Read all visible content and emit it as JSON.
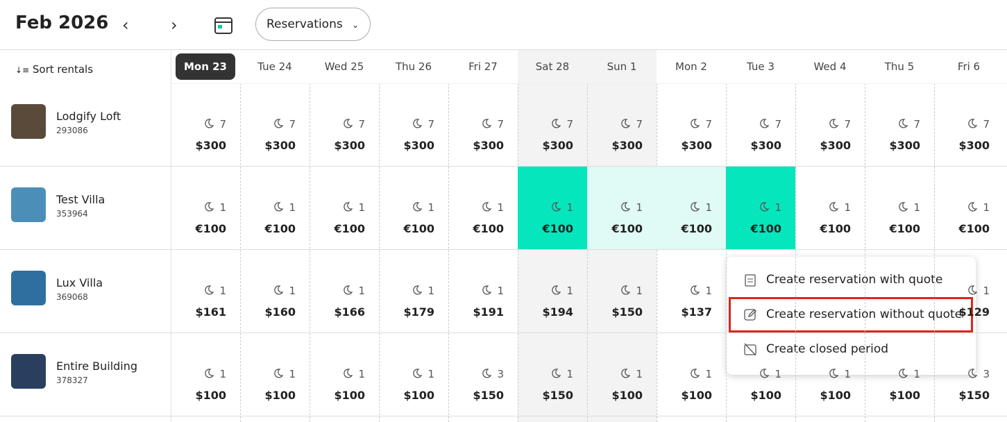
{
  "header": {
    "title": "Feb 2026",
    "view": "Reservations"
  },
  "sidebar": {
    "sort": "Sort rentals"
  },
  "days": [
    {
      "label": "Mon 23",
      "today": true
    },
    {
      "label": "Tue 24"
    },
    {
      "label": "Wed 25"
    },
    {
      "label": "Thu 26"
    },
    {
      "label": "Fri 27"
    },
    {
      "label": "Sat 28",
      "weekend": true
    },
    {
      "label": "Sun 1",
      "weekend": true
    },
    {
      "label": "Mon 2"
    },
    {
      "label": "Tue 3"
    },
    {
      "label": "Wed 4"
    },
    {
      "label": "Thu 5"
    },
    {
      "label": "Fri 6"
    }
  ],
  "rentals": [
    {
      "name": "Lodgify Loft",
      "id": "293086",
      "thumb": "#5a4a3a",
      "cells": [
        {
          "nights": 7,
          "price": "$300"
        },
        {
          "nights": 7,
          "price": "$300"
        },
        {
          "nights": 7,
          "price": "$300"
        },
        {
          "nights": 7,
          "price": "$300"
        },
        {
          "nights": 7,
          "price": "$300"
        },
        {
          "nights": 7,
          "price": "$300"
        },
        {
          "nights": 7,
          "price": "$300"
        },
        {
          "nights": 7,
          "price": "$300"
        },
        {
          "nights": 7,
          "price": "$300"
        },
        {
          "nights": 7,
          "price": "$300"
        },
        {
          "nights": 7,
          "price": "$300"
        },
        {
          "nights": 7,
          "price": "$300"
        }
      ]
    },
    {
      "name": "Test Villa",
      "id": "353964",
      "thumb": "#4b8fb8",
      "cells": [
        {
          "nights": 1,
          "price": "€100"
        },
        {
          "nights": 1,
          "price": "€100"
        },
        {
          "nights": 1,
          "price": "€100"
        },
        {
          "nights": 1,
          "price": "€100"
        },
        {
          "nights": 1,
          "price": "€100"
        },
        {
          "nights": 1,
          "price": "€100",
          "state": "selected"
        },
        {
          "nights": 1,
          "price": "€100",
          "state": "range"
        },
        {
          "nights": 1,
          "price": "€100",
          "state": "range"
        },
        {
          "nights": 1,
          "price": "€100",
          "state": "selected"
        },
        {
          "nights": 1,
          "price": "€100"
        },
        {
          "nights": 1,
          "price": "€100"
        },
        {
          "nights": 1,
          "price": "€100"
        }
      ]
    },
    {
      "name": "Lux Villa",
      "id": "369068",
      "thumb": "#2f6f9f",
      "cells": [
        {
          "nights": 1,
          "price": "$161"
        },
        {
          "nights": 1,
          "price": "$160"
        },
        {
          "nights": 1,
          "price": "$166"
        },
        {
          "nights": 1,
          "price": "$179"
        },
        {
          "nights": 1,
          "price": "$191"
        },
        {
          "nights": 1,
          "price": "$194"
        },
        {
          "nights": 1,
          "price": "$150"
        },
        {
          "nights": 1,
          "price": "$137"
        },
        null,
        null,
        null,
        {
          "nights": 1,
          "price": "$129"
        }
      ]
    },
    {
      "name": "Entire Building",
      "id": "378327",
      "thumb": "#2a3f5f",
      "cells": [
        {
          "nights": 1,
          "price": "$100"
        },
        {
          "nights": 1,
          "price": "$100"
        },
        {
          "nights": 1,
          "price": "$100"
        },
        {
          "nights": 1,
          "price": "$100"
        },
        {
          "nights": 3,
          "price": "$150"
        },
        {
          "nights": 1,
          "price": "$150"
        },
        {
          "nights": 1,
          "price": "$100"
        },
        {
          "nights": 1,
          "price": "$100"
        },
        {
          "nights": 1,
          "price": "$100"
        },
        {
          "nights": 1,
          "price": "$100"
        },
        {
          "nights": 1,
          "price": "$100"
        },
        {
          "nights": 3,
          "price": "$150"
        }
      ]
    }
  ],
  "menu": {
    "items": [
      {
        "label": "Create reservation with quote"
      },
      {
        "label": "Create reservation without quote",
        "highlighted": true
      },
      {
        "label": "Create closed period"
      }
    ]
  }
}
